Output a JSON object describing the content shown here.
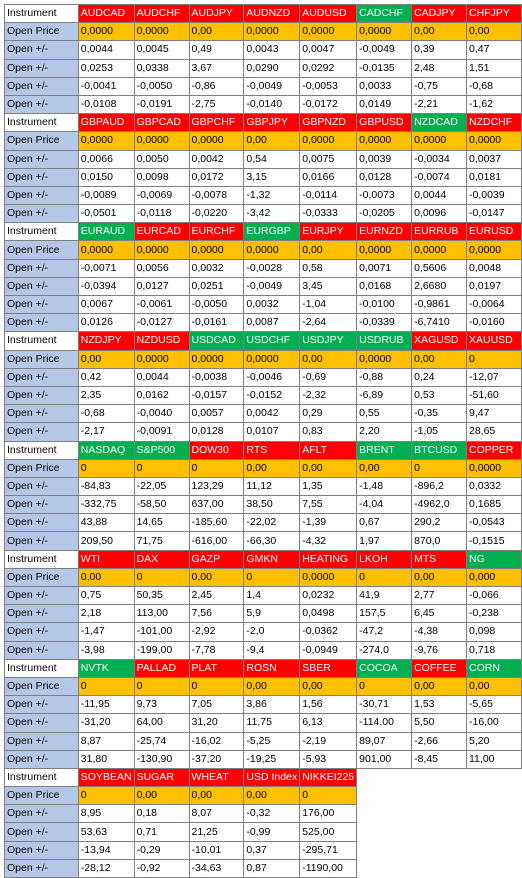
{
  "header_label": "Instrument",
  "open_price_label": "Open Price",
  "change_label": "Open +/-",
  "colors": {
    "red": "#ff0000",
    "green": "#00b050",
    "open_price": "#ffc000",
    "row_label": "#b4c7e7"
  },
  "blocks": [
    {
      "instruments": [
        {
          "name": "AUDCAD",
          "color": "red"
        },
        {
          "name": "AUDCHF",
          "color": "red"
        },
        {
          "name": "AUDJPY",
          "color": "red"
        },
        {
          "name": "AUDNZD",
          "color": "red"
        },
        {
          "name": "AUDUSD",
          "color": "red"
        },
        {
          "name": "CADCHF",
          "color": "green"
        },
        {
          "name": "CADJPY",
          "color": "red"
        },
        {
          "name": "CHFJPY",
          "color": "red"
        }
      ],
      "open_price": [
        "0,0000",
        "0,0000",
        "0,00",
        "0,0000",
        "0,0000",
        "0,0000",
        "0,00",
        "0,00"
      ],
      "changes": [
        [
          "0,0044",
          "0,0045",
          "0,49",
          "0,0043",
          "0,0047",
          "-0,0049",
          "0,39",
          "0,47"
        ],
        [
          "0,0253",
          "0,0338",
          "3,67",
          "0,0290",
          "0,0292",
          "-0,0135",
          "2,48",
          "1,51"
        ],
        [
          "-0,0041",
          "-0,0050",
          "-0,86",
          "-0,0049",
          "-0,0053",
          "0,0033",
          "-0,75",
          "-0,68"
        ],
        [
          "-0,0108",
          "-0,0191",
          "-2,75",
          "-0,0140",
          "-0,0172",
          "0,0149",
          "-2,21",
          "-1,62"
        ]
      ]
    },
    {
      "instruments": [
        {
          "name": "GBPAUD",
          "color": "red"
        },
        {
          "name": "GBPCAD",
          "color": "red"
        },
        {
          "name": "GBPCHF",
          "color": "red"
        },
        {
          "name": "GBPJPY",
          "color": "red"
        },
        {
          "name": "GBPNZD",
          "color": "red"
        },
        {
          "name": "GBPUSD",
          "color": "red"
        },
        {
          "name": "NZDCAD",
          "color": "green"
        },
        {
          "name": "NZDCHF",
          "color": "red"
        }
      ],
      "open_price": [
        "0,0000",
        "0,0000",
        "0,0000",
        "0,00",
        "0,0000",
        "0,0000",
        "0,0000",
        "0,0000"
      ],
      "changes": [
        [
          "0,0066",
          "0,0050",
          "0,0042",
          "0,54",
          "0,0075",
          "0,0039",
          "-0,0034",
          "0,0037"
        ],
        [
          "0,0150",
          "0,0098",
          "0,0172",
          "3,15",
          "0,0166",
          "0,0128",
          "-0,0074",
          "0,0181"
        ],
        [
          "-0,0089",
          "-0,0069",
          "-0,0078",
          "-1,32",
          "-0,0114",
          "-0,0073",
          "0,0044",
          "-0,0039"
        ],
        [
          "-0,0501",
          "-0,0118",
          "-0,0220",
          "-3,42",
          "-0,0333",
          "-0,0205",
          "0,0096",
          "-0,0147"
        ]
      ]
    },
    {
      "instruments": [
        {
          "name": "EURAUD",
          "color": "green"
        },
        {
          "name": "EURCAD",
          "color": "red"
        },
        {
          "name": "EURCHF",
          "color": "red"
        },
        {
          "name": "EURGBP",
          "color": "green"
        },
        {
          "name": "EURJPY",
          "color": "red"
        },
        {
          "name": "EURNZD",
          "color": "red"
        },
        {
          "name": "EURRUB",
          "color": "red"
        },
        {
          "name": "EURUSD",
          "color": "red"
        }
      ],
      "open_price": [
        "0,0000",
        "0,0000",
        "0,0000",
        "0,0000",
        "0,00",
        "0,0000",
        "0,0000",
        "0,0000"
      ],
      "changes": [
        [
          "-0,0071",
          "0,0056",
          "0,0032",
          "-0,0028",
          "0,58",
          "0,0071",
          "0,5606",
          "0,0048"
        ],
        [
          "-0,0394",
          "0,0127",
          "0,0251",
          "-0,0049",
          "3,45",
          "0,0168",
          "2,6680",
          "0,0197"
        ],
        [
          "0,0067",
          "-0,0061",
          "-0,0050",
          "0,0032",
          "-1,04",
          "-0,0100",
          "-0,9861",
          "-0,0064"
        ],
        [
          "0,0126",
          "-0,0127",
          "-0,0161",
          "0,0087",
          "-2,64",
          "-0,0339",
          "-6,7410",
          "-0,0160"
        ]
      ]
    },
    {
      "instruments": [
        {
          "name": "NZDJPY",
          "color": "red"
        },
        {
          "name": "NZDUSD",
          "color": "red"
        },
        {
          "name": "USDCAD",
          "color": "green"
        },
        {
          "name": "USDCHF",
          "color": "green"
        },
        {
          "name": "USDJPY",
          "color": "green"
        },
        {
          "name": "USDRUB",
          "color": "green"
        },
        {
          "name": "XAGUSD",
          "color": "red"
        },
        {
          "name": "XAUUSD",
          "color": "red"
        }
      ],
      "open_price": [
        "0,00",
        "0,0000",
        "0,0000",
        "0,0000",
        "0,00",
        "0,0000",
        "0,00",
        "0"
      ],
      "changes": [
        [
          "0,42",
          "0,0044",
          "-0,0038",
          "-0,0046",
          "-0,69",
          "-0,88",
          "0,24",
          "-12,07"
        ],
        [
          "2,35",
          "0,0162",
          "-0,0157",
          "-0,0152",
          "-2,32",
          "-6,89",
          "0,53",
          "-51,60"
        ],
        [
          "-0,68",
          "-0,0040",
          "0,0057",
          "0,0042",
          "0,29",
          "0,55",
          "-0,35",
          "9,47"
        ],
        [
          "-2,17",
          "-0,0091",
          "0,0128",
          "0,0107",
          "0,83",
          "2,20",
          "-1,05",
          "28,65"
        ]
      ]
    },
    {
      "instruments": [
        {
          "name": "NASDAQ",
          "color": "green"
        },
        {
          "name": "S&P500",
          "color": "green"
        },
        {
          "name": "DOW30",
          "color": "red"
        },
        {
          "name": "RTS",
          "color": "red"
        },
        {
          "name": "AFLT",
          "color": "red"
        },
        {
          "name": "BRENT",
          "color": "green"
        },
        {
          "name": "BTCUSD",
          "color": "green"
        },
        {
          "name": "COPPER",
          "color": "red"
        }
      ],
      "open_price": [
        "0",
        "0",
        "0",
        "0,00",
        "0,00",
        "0,00",
        "0",
        "0,0000"
      ],
      "changes": [
        [
          "-84,83",
          "-22,05",
          "123,29",
          "11,12",
          "1,35",
          "-1,48",
          "-896,2",
          "0,0332"
        ],
        [
          "-332,75",
          "-58,50",
          "637,00",
          "38,50",
          "7,55",
          "-4,04",
          "-4962,0",
          "0,1685"
        ],
        [
          "43,88",
          "14,65",
          "-185,60",
          "-22,02",
          "-1,39",
          "0,67",
          "290,2",
          "-0,0543"
        ],
        [
          "209,50",
          "71,75",
          "-616,00",
          "-66,30",
          "-4,32",
          "1,97",
          "870,0",
          "-0,1515"
        ]
      ]
    },
    {
      "instruments": [
        {
          "name": "WTI",
          "color": "red"
        },
        {
          "name": "DAX",
          "color": "red"
        },
        {
          "name": "GAZP",
          "color": "red"
        },
        {
          "name": "GMKN",
          "color": "red"
        },
        {
          "name": "HEATING",
          "color": "red"
        },
        {
          "name": "LKOH",
          "color": "red"
        },
        {
          "name": "MTS",
          "color": "red"
        },
        {
          "name": "NG",
          "color": "green"
        }
      ],
      "open_price": [
        "0,00",
        "0",
        "0,00",
        "0",
        "0,0000",
        "0",
        "0,00",
        "0,000"
      ],
      "changes": [
        [
          "0,75",
          "50,35",
          "2,45",
          "1,4",
          "0,0232",
          "41,9",
          "2,77",
          "-0,066"
        ],
        [
          "2,18",
          "113,00",
          "7,56",
          "5,9",
          "0,0498",
          "157,5",
          "6,45",
          "-0,238"
        ],
        [
          "-1,47",
          "-101,00",
          "-2,92",
          "-2,0",
          "-0,0362",
          "-47,2",
          "-4,38",
          "0,098"
        ],
        [
          "-3,98",
          "-199,00",
          "-7,78",
          "-9,4",
          "-0,0949",
          "-274,0",
          "-9,76",
          "0,718"
        ]
      ]
    },
    {
      "instruments": [
        {
          "name": "NVTK",
          "color": "green"
        },
        {
          "name": "PALLAD",
          "color": "red"
        },
        {
          "name": "PLAT",
          "color": "red"
        },
        {
          "name": "ROSN",
          "color": "red"
        },
        {
          "name": "SBER",
          "color": "red"
        },
        {
          "name": "COCOA",
          "color": "green"
        },
        {
          "name": "COFFEE",
          "color": "red"
        },
        {
          "name": "CORN",
          "color": "green"
        }
      ],
      "open_price": [
        "0",
        "0",
        "0",
        "0,00",
        "0,00",
        "0",
        "0,00",
        "0,00"
      ],
      "changes": [
        [
          "-11,95",
          "9,73",
          "7,05",
          "3,86",
          "1,56",
          "-30,71",
          "1,53",
          "-5,65"
        ],
        [
          "-31,20",
          "64,00",
          "31,20",
          "11,75",
          "6,13",
          "-114,00",
          "5,50",
          "-16,00"
        ],
        [
          "8,87",
          "-25,74",
          "-16,02",
          "-5,25",
          "-2,19",
          "89,07",
          "-2,66",
          "5,20"
        ],
        [
          "31,80",
          "-130,90",
          "-37,20",
          "-19,25",
          "-5,93",
          "901,00",
          "-8,45",
          "11,00"
        ]
      ]
    },
    {
      "instruments": [
        {
          "name": "SOYBEAN",
          "color": "red"
        },
        {
          "name": "SUGAR",
          "color": "red"
        },
        {
          "name": "WHEAT",
          "color": "red"
        },
        {
          "name": "USD Index",
          "color": "red"
        },
        {
          "name": "NIKKEI225",
          "color": "red"
        }
      ],
      "open_price": [
        "0",
        "0,00",
        "0,00",
        "0,00",
        "0"
      ],
      "changes": [
        [
          "8,95",
          "0,18",
          "8,07",
          "-0,32",
          "176,00"
        ],
        [
          "53,63",
          "0,71",
          "21,25",
          "-0,99",
          "525,00"
        ],
        [
          "-13,94",
          "-0,29",
          "-10,01",
          "0,37",
          "-295,71"
        ],
        [
          "-28,12",
          "-0,92",
          "-34,63",
          "0,87",
          "-1190,00"
        ]
      ]
    }
  ]
}
